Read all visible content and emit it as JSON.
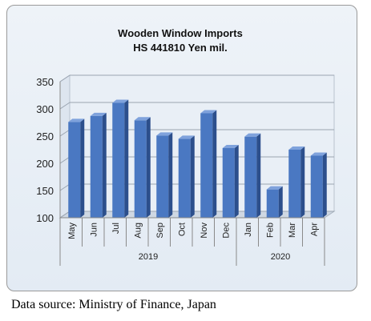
{
  "chart_data": {
    "type": "bar",
    "title": "Wooden Window Imports",
    "subtitle": "HS 441810 Yen mil.",
    "categories": [
      "May",
      "Jun",
      "Jul",
      "Aug",
      "Sep",
      "Oct",
      "Nov",
      "Dec",
      "Jan",
      "Feb",
      "Mar",
      "Apr"
    ],
    "groups": [
      {
        "label": "2019",
        "count": 8
      },
      {
        "label": "2020",
        "count": 4
      }
    ],
    "values": [
      276,
      287,
      311,
      279,
      251,
      245,
      292,
      228,
      249,
      152,
      225,
      214
    ],
    "ylim": [
      100,
      350
    ],
    "yticks": [
      100,
      150,
      200,
      250,
      300,
      350
    ],
    "xlabel": "",
    "ylabel": "",
    "grid": true,
    "bar_color": "#4a78c2"
  },
  "source_text": "Data source: Ministry of Finance, Japan"
}
